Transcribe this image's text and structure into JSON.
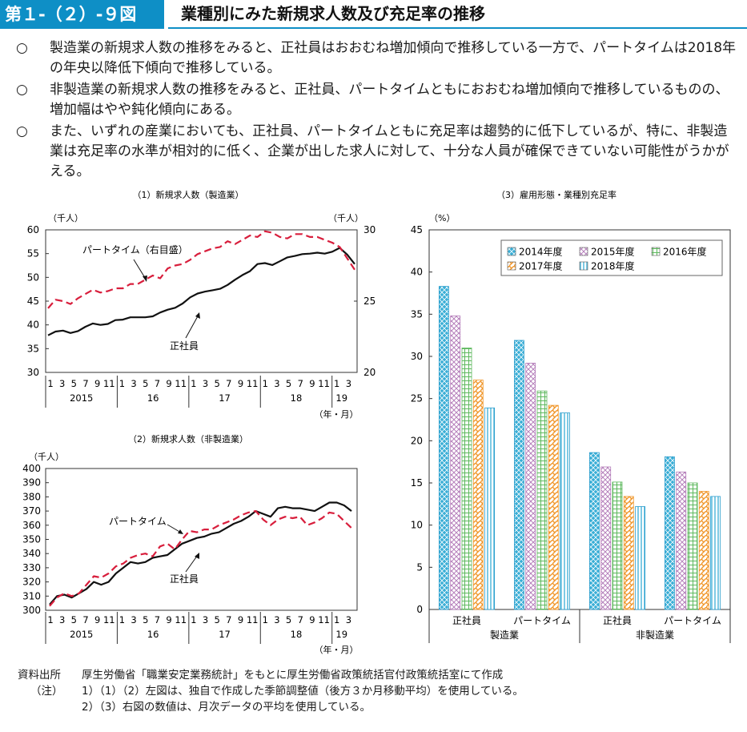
{
  "header": {
    "label": "第１-（２）-９図",
    "title": "業種別にみた新規求人数及び充足率の推移"
  },
  "bullets": [
    {
      "mark": "○",
      "text": "製造業の新規求人数の推移をみると、正社員はおおむね増加傾向で推移している一方で、パートタイムは2018年の年央以降低下傾向で推移している。"
    },
    {
      "mark": "○",
      "text": "非製造業の新規求人数の推移をみると、正社員、パートタイムともにおおむね増加傾向で推移しているものの、増加幅はやや鈍化傾向にある。"
    },
    {
      "mark": "○",
      "text": "また、いずれの産業においても、正社員、パートタイムともに充足率は趨勢的に低下しているが、特に、非製造業は充足率の水準が相対的に低く、企業が出した求人に対して、十分な人員が確保できていない可能性がうかがえる。"
    }
  ],
  "notes": [
    {
      "label": "資料出所",
      "text": "厚生労働省「職業安定業務統計」をもとに厚生労働省政策統括官付政策統括室にて作成"
    },
    {
      "label": "（注）",
      "text": "1）（1）（2）左図は、独自で作成した季節調整値（後方３か月移動平均）を使用している。"
    },
    {
      "label": "",
      "text": "2）（3）右図の数値は、月次データの平均を使用している。"
    }
  ],
  "chart_data": [
    {
      "type": "line",
      "title": "（1）新規求人数（製造業）",
      "ylabel_left": "（千人）",
      "ylabel_right": "（千人）",
      "xlabel": "（年・月）",
      "ylim_left": [
        30,
        60
      ],
      "yticks_left": [
        30,
        35,
        40,
        45,
        50,
        55,
        60
      ],
      "ylim_right": [
        20,
        30
      ],
      "yticks_right": [
        20,
        25,
        30
      ],
      "x_month_labels": [
        "1",
        "3",
        "5",
        "7",
        "9",
        "11",
        "1",
        "3",
        "5",
        "7",
        "9",
        "11",
        "1",
        "3",
        "5",
        "7",
        "9",
        "11",
        "1",
        "3",
        "5",
        "7",
        "9",
        "11",
        "1",
        "3"
      ],
      "x_year_labels": [
        "2015",
        "16",
        "17",
        "18",
        "19"
      ],
      "annotations": [
        "パートタイム（右目盛）",
        "正社員"
      ],
      "series": [
        {
          "name": "正社員",
          "axis": "left",
          "color": "#111111",
          "dash": "solid",
          "values": [
            37.8,
            38.6,
            38.8,
            38.3,
            38.7,
            39.6,
            40.3,
            40.0,
            40.2,
            41.0,
            41.1,
            41.6,
            41.6,
            41.6,
            41.8,
            42.6,
            43.2,
            43.6,
            44.5,
            45.8,
            46.6,
            47.0,
            47.3,
            47.6,
            48.4,
            49.5,
            50.5,
            51.3,
            52.8,
            53.0,
            52.6,
            53.4,
            54.2,
            54.5,
            54.9,
            55.0,
            55.2,
            55.0,
            55.4,
            56.2,
            54.8,
            52.8
          ]
        },
        {
          "name": "パートタイム",
          "axis": "right",
          "color": "#d81e3c",
          "dash": "dashed",
          "values": [
            24.5,
            25.1,
            25.0,
            24.8,
            25.2,
            25.5,
            25.8,
            25.6,
            25.7,
            25.9,
            25.9,
            26.2,
            26.2,
            26.5,
            26.8,
            26.6,
            27.3,
            27.5,
            27.6,
            27.9,
            28.3,
            28.5,
            28.7,
            28.8,
            29.2,
            29.0,
            29.3,
            29.6,
            29.5,
            29.9,
            29.8,
            29.5,
            29.4,
            29.7,
            29.7,
            29.5,
            29.5,
            29.3,
            29.1,
            28.8,
            28.0,
            27.2
          ]
        }
      ]
    },
    {
      "type": "line",
      "title": "（2）新規求人数（非製造業）",
      "ylabel": "（千人）",
      "xlabel": "（年・月）",
      "ylim": [
        300,
        400
      ],
      "yticks": [
        300,
        310,
        320,
        330,
        340,
        350,
        360,
        370,
        380,
        390,
        400
      ],
      "x_month_labels": [
        "1",
        "3",
        "5",
        "7",
        "9",
        "11",
        "1",
        "3",
        "5",
        "7",
        "9",
        "11",
        "1",
        "3",
        "5",
        "7",
        "9",
        "11",
        "1",
        "3",
        "5",
        "7",
        "9",
        "11",
        "1",
        "3"
      ],
      "x_year_labels": [
        "2015",
        "16",
        "17",
        "18",
        "19"
      ],
      "annotations": [
        "パートタイム",
        "正社員"
      ],
      "series": [
        {
          "name": "正社員",
          "color": "#111111",
          "dash": "solid",
          "values": [
            304,
            310,
            311,
            309,
            312,
            315,
            320,
            318,
            320,
            326,
            330,
            334,
            333,
            334,
            337,
            338,
            339,
            343,
            347,
            349,
            351,
            352,
            354,
            355,
            358,
            361,
            363,
            366,
            370,
            368,
            366,
            372,
            373,
            372,
            372,
            371,
            370,
            373,
            376,
            376,
            374,
            370
          ]
        },
        {
          "name": "パートタイム",
          "color": "#d81e3c",
          "dash": "dashed",
          "values": [
            303,
            309,
            312,
            310,
            312,
            318,
            324,
            323,
            326,
            331,
            333,
            337,
            339,
            340,
            338,
            345,
            347,
            343,
            350,
            356,
            355,
            357,
            357,
            360,
            362,
            364,
            367,
            369,
            370,
            364,
            360,
            364,
            366,
            365,
            366,
            360,
            362,
            365,
            369,
            368,
            363,
            358
          ]
        }
      ]
    },
    {
      "type": "bar",
      "title": "（3）雇用形態・業種別充足率",
      "ylabel": "（%）",
      "ylim": [
        0,
        45
      ],
      "yticks": [
        0,
        5,
        10,
        15,
        20,
        25,
        30,
        35,
        40,
        45
      ],
      "categories": [
        "正社員",
        "パートタイム",
        "正社員",
        "パートタイム"
      ],
      "groups": [
        {
          "name": "製造業",
          "span": [
            0,
            1
          ]
        },
        {
          "name": "非製造業",
          "span": [
            2,
            3
          ]
        }
      ],
      "series": [
        {
          "name": "2014年度",
          "values": [
            38.3,
            31.9,
            18.6,
            18.1
          ],
          "color": "#41b3d8"
        },
        {
          "name": "2015年度",
          "values": [
            34.8,
            29.2,
            16.9,
            16.3
          ],
          "color": "#c9a0cc"
        },
        {
          "name": "2016年度",
          "values": [
            31.0,
            25.9,
            15.1,
            15.0
          ],
          "color": "#7cc37c"
        },
        {
          "name": "2017年度",
          "values": [
            27.2,
            24.2,
            13.4,
            14.0
          ],
          "color": "#f2a33a"
        },
        {
          "name": "2018年度",
          "values": [
            23.9,
            23.3,
            12.2,
            13.4
          ],
          "color": "#41b3d8"
        }
      ]
    }
  ]
}
